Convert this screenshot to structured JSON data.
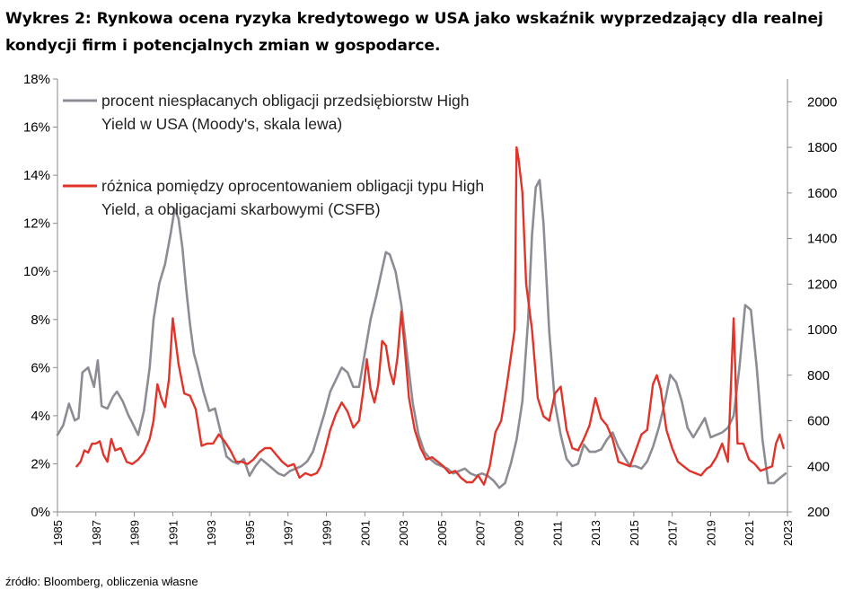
{
  "title": "Wykres 2: Rynkowa ocena ryzyka kredytowego w USA jako wskaźnik wyprzedzający dla realnej kondycji firm i potencjalnych zmian w gospodarce.",
  "source": "źródło: Bloomberg, obliczenia własne",
  "colors": {
    "default_rate": "#8c8c94",
    "spread": "#e0342a"
  },
  "chart_data": {
    "type": "line",
    "title": "Wykres 2: Rynkowa ocena ryzyka kredytowego w USA jako wskaźnik wyprzedzający dla realnej kondycji firm i potencjalnych zmian w gospodarce.",
    "xlabel": "",
    "ylabel": "",
    "y2label": "",
    "xlim": [
      1985,
      2023
    ],
    "ylim": [
      0,
      18
    ],
    "y2lim": [
      200,
      2100
    ],
    "y_ticks": [
      "0%",
      "2%",
      "4%",
      "6%",
      "8%",
      "10%",
      "12%",
      "14%",
      "16%",
      "18%"
    ],
    "y2_ticks": [
      "200",
      "400",
      "600",
      "800",
      "1000",
      "1200",
      "1400",
      "1600",
      "1800",
      "2000"
    ],
    "x_ticks": [
      "1985",
      "1987",
      "1989",
      "1991",
      "1993",
      "1995",
      "1997",
      "1999",
      "2001",
      "2003",
      "2005",
      "2007",
      "2009",
      "2011",
      "2013",
      "2015",
      "2017",
      "2019",
      "2021",
      "2023"
    ],
    "legend_position": "top-left",
    "series": [
      {
        "name": "procent niespłacanych obligacji przedsiębiorstw High Yield w USA (Moody's, skala lewa)",
        "axis": "left",
        "x": [
          1985.0,
          1985.3,
          1985.6,
          1985.9,
          1986.1,
          1986.3,
          1986.6,
          1986.9,
          1987.1,
          1987.3,
          1987.6,
          1987.9,
          1988.1,
          1988.4,
          1988.7,
          1988.9,
          1989.2,
          1989.5,
          1989.8,
          1990.0,
          1990.3,
          1990.6,
          1990.9,
          1991.1,
          1991.3,
          1991.5,
          1991.7,
          1991.9,
          1992.1,
          1992.3,
          1992.6,
          1992.9,
          1993.2,
          1993.5,
          1993.8,
          1994.1,
          1994.4,
          1994.7,
          1995.0,
          1995.3,
          1995.6,
          1995.9,
          1996.2,
          1996.5,
          1996.8,
          1997.1,
          1997.4,
          1997.7,
          1998.0,
          1998.3,
          1998.6,
          1998.9,
          1999.2,
          1999.5,
          1999.8,
          2000.1,
          2000.4,
          2000.7,
          2001.0,
          2001.3,
          2001.6,
          2001.9,
          2002.1,
          2002.3,
          2002.6,
          2002.9,
          2003.2,
          2003.5,
          2003.8,
          2004.1,
          2004.4,
          2004.7,
          2005.0,
          2005.3,
          2005.6,
          2005.9,
          2006.2,
          2006.5,
          2006.8,
          2007.1,
          2007.4,
          2007.7,
          2008.0,
          2008.3,
          2008.6,
          2008.9,
          2009.2,
          2009.5,
          2009.7,
          2009.9,
          2010.1,
          2010.3,
          2010.6,
          2010.9,
          2011.2,
          2011.5,
          2011.8,
          2012.1,
          2012.4,
          2012.7,
          2013.0,
          2013.3,
          2013.6,
          2013.9,
          2014.2,
          2014.5,
          2014.8,
          2015.1,
          2015.4,
          2015.7,
          2016.0,
          2016.3,
          2016.6,
          2016.9,
          2017.2,
          2017.5,
          2017.8,
          2018.1,
          2018.4,
          2018.7,
          2019.0,
          2019.3,
          2019.6,
          2019.9,
          2020.2,
          2020.5,
          2020.8,
          2021.1,
          2021.4,
          2021.7,
          2022.0,
          2022.3,
          2022.6,
          2022.9
        ],
        "values": [
          3.2,
          3.6,
          4.5,
          3.8,
          3.9,
          5.8,
          6.0,
          5.2,
          6.3,
          4.4,
          4.3,
          4.8,
          5.0,
          4.6,
          4.0,
          3.7,
          3.2,
          4.2,
          6.0,
          8.0,
          9.5,
          10.3,
          11.6,
          12.6,
          12.2,
          11.0,
          9.3,
          7.8,
          6.6,
          6.0,
          5.0,
          4.2,
          4.3,
          3.3,
          2.3,
          2.1,
          2.0,
          2.2,
          1.5,
          1.9,
          2.2,
          2.0,
          1.8,
          1.6,
          1.5,
          1.7,
          1.8,
          1.9,
          2.1,
          2.5,
          3.3,
          4.1,
          5.0,
          5.5,
          6.0,
          5.8,
          5.2,
          5.2,
          6.6,
          8.0,
          9.0,
          10.1,
          10.8,
          10.7,
          10.0,
          8.6,
          6.5,
          4.5,
          3.2,
          2.5,
          2.2,
          2.0,
          1.9,
          1.8,
          1.6,
          1.7,
          1.8,
          1.6,
          1.5,
          1.6,
          1.5,
          1.3,
          1.0,
          1.2,
          2.0,
          3.0,
          4.6,
          8.0,
          11.5,
          13.5,
          13.8,
          12.0,
          7.5,
          4.5,
          3.2,
          2.2,
          1.9,
          2.0,
          2.8,
          2.5,
          2.5,
          2.6,
          3.0,
          3.3,
          2.7,
          2.3,
          1.9,
          1.9,
          1.8,
          2.1,
          2.7,
          3.5,
          4.5,
          5.7,
          5.4,
          4.6,
          3.5,
          3.1,
          3.5,
          3.9,
          3.1,
          3.2,
          3.3,
          3.5,
          4.0,
          6.0,
          8.6,
          8.4,
          6.0,
          3.0,
          1.2,
          1.2,
          1.4,
          1.6
        ]
      },
      {
        "name": "różnica pomiędzy oprocentowaniem obligacji typu High Yield, a obligacjami skarbowymi (CSFB)",
        "axis": "right",
        "x": [
          1986.0,
          1986.2,
          1986.4,
          1986.6,
          1986.8,
          1987.0,
          1987.2,
          1987.4,
          1987.6,
          1987.8,
          1988.0,
          1988.3,
          1988.6,
          1988.9,
          1989.2,
          1989.5,
          1989.8,
          1990.0,
          1990.2,
          1990.4,
          1990.6,
          1990.8,
          1991.0,
          1991.3,
          1991.6,
          1991.9,
          1992.2,
          1992.5,
          1992.8,
          1993.1,
          1993.4,
          1993.7,
          1994.0,
          1994.3,
          1994.6,
          1994.9,
          1995.2,
          1995.5,
          1995.8,
          1996.1,
          1996.4,
          1996.7,
          1997.0,
          1997.3,
          1997.6,
          1997.9,
          1998.2,
          1998.5,
          1998.7,
          1998.9,
          1999.2,
          1999.5,
          1999.8,
          2000.1,
          2000.4,
          2000.7,
          2000.9,
          2001.1,
          2001.3,
          2001.5,
          2001.7,
          2001.9,
          2002.1,
          2002.3,
          2002.5,
          2002.7,
          2002.9,
          2003.1,
          2003.3,
          2003.6,
          2003.9,
          2004.2,
          2004.5,
          2004.8,
          2005.1,
          2005.4,
          2005.7,
          2006.0,
          2006.3,
          2006.6,
          2006.9,
          2007.2,
          2007.5,
          2007.8,
          2008.1,
          2008.4,
          2008.6,
          2008.8,
          2008.9,
          2009.0,
          2009.2,
          2009.4,
          2009.7,
          2010.0,
          2010.3,
          2010.6,
          2010.9,
          2011.2,
          2011.5,
          2011.8,
          2012.1,
          2012.4,
          2012.7,
          2013.0,
          2013.3,
          2013.6,
          2013.9,
          2014.2,
          2014.5,
          2014.8,
          2015.1,
          2015.4,
          2015.7,
          2016.0,
          2016.2,
          2016.4,
          2016.7,
          2017.0,
          2017.3,
          2017.6,
          2017.9,
          2018.2,
          2018.5,
          2018.8,
          2019.0,
          2019.3,
          2019.6,
          2019.9,
          2020.1,
          2020.2,
          2020.4,
          2020.7,
          2021.0,
          2021.3,
          2021.6,
          2021.9,
          2022.2,
          2022.4,
          2022.6,
          2022.8
        ],
        "values": [
          400,
          420,
          470,
          460,
          500,
          500,
          510,
          450,
          420,
          520,
          470,
          480,
          420,
          410,
          430,
          460,
          520,
          600,
          760,
          700,
          660,
          780,
          1050,
          850,
          720,
          710,
          650,
          490,
          500,
          500,
          540,
          510,
          470,
          420,
          420,
          410,
          430,
          460,
          480,
          480,
          450,
          420,
          400,
          410,
          350,
          370,
          360,
          370,
          400,
          460,
          560,
          630,
          680,
          640,
          570,
          600,
          720,
          870,
          740,
          680,
          760,
          950,
          930,
          820,
          760,
          880,
          1080,
          900,
          700,
          560,
          480,
          430,
          440,
          420,
          400,
          370,
          380,
          350,
          330,
          330,
          360,
          320,
          400,
          550,
          600,
          760,
          880,
          1000,
          1800,
          1750,
          1600,
          1200,
          1000,
          700,
          620,
          600,
          720,
          750,
          560,
          480,
          470,
          520,
          580,
          700,
          610,
          580,
          520,
          420,
          410,
          400,
          470,
          540,
          560,
          760,
          800,
          740,
          560,
          480,
          420,
          400,
          380,
          370,
          360,
          390,
          400,
          440,
          500,
          420,
          850,
          1050,
          500,
          500,
          430,
          410,
          380,
          390,
          400,
          500,
          540,
          480
        ]
      }
    ]
  }
}
